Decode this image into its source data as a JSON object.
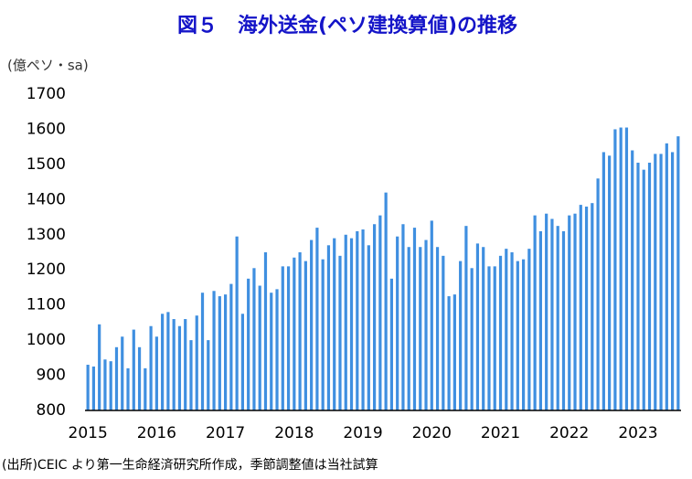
{
  "chart_data": {
    "type": "bar",
    "title": "図５　海外送金(ペソ建換算値)の推移",
    "y_axis_label": "(億ペソ・sa)",
    "source": "(出所)CEIC より第一生命経済研究所作成，季節調整値は当社試算",
    "color": "#3f8fe0",
    "ylim": [
      800,
      1700
    ],
    "yticks": [
      800,
      900,
      1000,
      1100,
      1200,
      1300,
      1400,
      1500,
      1600,
      1700
    ],
    "categories": [
      "2015",
      null,
      null,
      null,
      null,
      null,
      null,
      null,
      null,
      null,
      null,
      null,
      "2016",
      null,
      null,
      null,
      null,
      null,
      null,
      null,
      null,
      null,
      null,
      null,
      "2017",
      null,
      null,
      null,
      null,
      null,
      null,
      null,
      null,
      null,
      null,
      null,
      "2018",
      null,
      null,
      null,
      null,
      null,
      null,
      null,
      null,
      null,
      null,
      null,
      "2019",
      null,
      null,
      null,
      null,
      null,
      null,
      null,
      null,
      null,
      null,
      null,
      "2020",
      null,
      null,
      null,
      null,
      null,
      null,
      null,
      null,
      null,
      null,
      null,
      "2021",
      null,
      null,
      null,
      null,
      null,
      null,
      null,
      null,
      null,
      null,
      null,
      "2022",
      null,
      null,
      null,
      null,
      null,
      null,
      null,
      null,
      null,
      null,
      null,
      "2023",
      null,
      null,
      null,
      null,
      null,
      null,
      null
    ],
    "values": [
      930,
      925,
      1045,
      945,
      940,
      980,
      1010,
      920,
      1030,
      980,
      920,
      1040,
      1010,
      1075,
      1080,
      1060,
      1040,
      1060,
      1000,
      1070,
      1135,
      1000,
      1140,
      1125,
      1130,
      1160,
      1295,
      1075,
      1175,
      1205,
      1155,
      1250,
      1135,
      1145,
      1210,
      1210,
      1235,
      1250,
      1225,
      1285,
      1320,
      1230,
      1270,
      1290,
      1240,
      1300,
      1290,
      1310,
      1315,
      1270,
      1330,
      1355,
      1420,
      1175,
      1295,
      1330,
      1265,
      1320,
      1265,
      1285,
      1340,
      1265,
      1240,
      1125,
      1130,
      1225,
      1325,
      1205,
      1275,
      1265,
      1210,
      1210,
      1240,
      1260,
      1250,
      1225,
      1230,
      1260,
      1355,
      1310,
      1360,
      1345,
      1325,
      1310,
      1355,
      1360,
      1385,
      1380,
      1390,
      1460,
      1535,
      1525,
      1600,
      1605,
      1605,
      1540,
      1505,
      1485,
      1505,
      1530,
      1530,
      1560,
      1535,
      1580
    ]
  }
}
